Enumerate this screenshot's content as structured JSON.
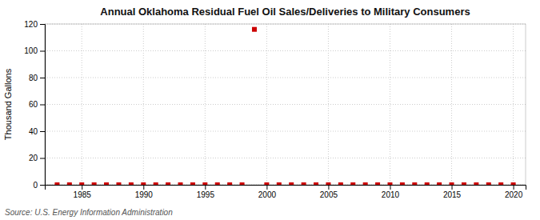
{
  "chart_data": {
    "type": "scatter",
    "title": "Annual Oklahoma Residual Fuel Oil Sales/Deliveries to Military Consumers",
    "ylabel": "Thousand Gallons",
    "source": "Source: U.S. Energy Information Administration",
    "x": [
      1983,
      1984,
      1985,
      1986,
      1987,
      1988,
      1989,
      1990,
      1991,
      1992,
      1993,
      1994,
      1995,
      1996,
      1997,
      1998,
      1999,
      2000,
      2001,
      2002,
      2003,
      2004,
      2005,
      2006,
      2007,
      2008,
      2009,
      2010,
      2011,
      2012,
      2013,
      2014,
      2015,
      2016,
      2017,
      2018,
      2019,
      2020
    ],
    "values": [
      0,
      0,
      0,
      0,
      0,
      0,
      0,
      0,
      0,
      0,
      0,
      0,
      0,
      0,
      0,
      0,
      116,
      0,
      0,
      0,
      0,
      0,
      0,
      0,
      0,
      0,
      0,
      0,
      0,
      0,
      0,
      0,
      0,
      0,
      0,
      0,
      0,
      0
    ],
    "color": "#cc0000",
    "marker": "square",
    "xlim": [
      1982,
      2021
    ],
    "xticks": [
      1985,
      1990,
      1995,
      2000,
      2005,
      2010,
      2015,
      2020
    ],
    "ylim": [
      0,
      120
    ],
    "yticks": [
      0,
      20,
      40,
      60,
      80,
      100,
      120
    ],
    "grid": true
  }
}
